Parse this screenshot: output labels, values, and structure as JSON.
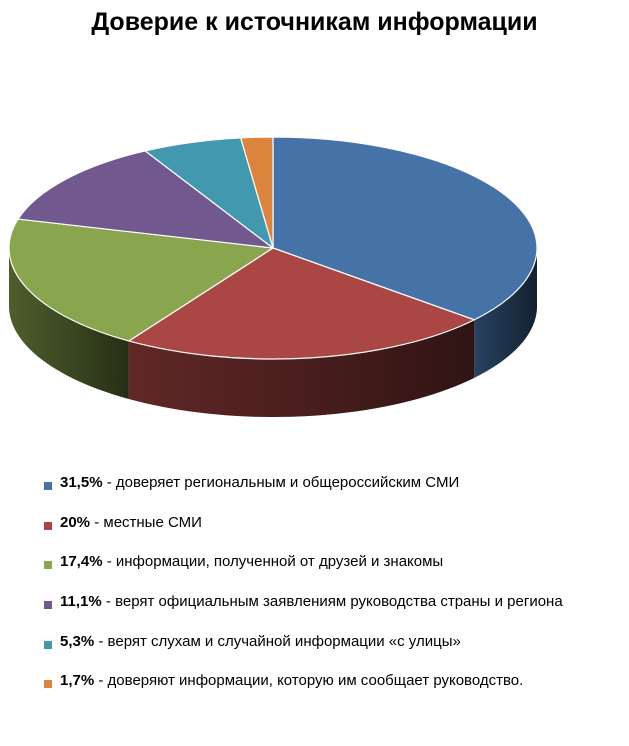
{
  "chart_data": {
    "type": "pie",
    "title": "Доверие к источникам информации",
    "categories": [
      "доверяет региональным и общероссийским СМИ",
      "местные СМИ",
      "информации, полученной от друзей и знакомы",
      "верят официальным заявлениям руководства страны и региона",
      "верят слухам и случайной информации «с улицы»",
      "доверяют информации, которую им сообщает руководство."
    ],
    "values": [
      31.5,
      20,
      17.4,
      11.1,
      5.3,
      1.7
    ],
    "value_labels": [
      "31,5%",
      "20%",
      "17,4%",
      "11,1%",
      "5,3%",
      "1,7%"
    ],
    "separator": " - ",
    "colors": [
      "#4572A7",
      "#AA4643",
      "#89A54E",
      "#71588F",
      "#4198AF",
      "#DB843D"
    ],
    "legend_position": "bottom",
    "style": "3d-pie"
  }
}
